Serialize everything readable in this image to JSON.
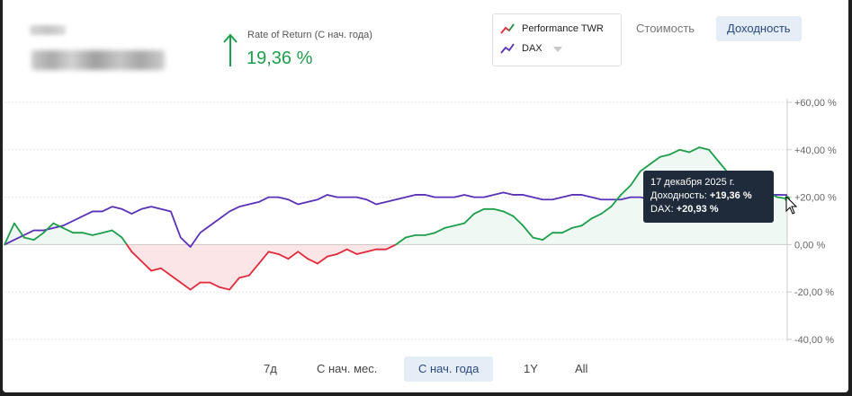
{
  "header": {
    "rate_of_return_label": "Rate of Return (С нач. года)",
    "rate_of_return_value": "19,36 %"
  },
  "legend": {
    "items": [
      {
        "label": "Performance TWR",
        "color": "#e02a3a"
      },
      {
        "label": "DAX",
        "color": "#5b2fb8"
      }
    ]
  },
  "view_toggle": {
    "value_label": "Стоимость",
    "return_label": "Доходность",
    "active": "return"
  },
  "range_buttons": {
    "items": [
      "7д",
      "С нач. мес.",
      "С нач. года",
      "1Y",
      "All"
    ],
    "active": "С нач. года"
  },
  "tooltip": {
    "date": "17 декабря 2025 г.",
    "return_label": "Доходность:",
    "return_value": "+19,36 %",
    "dax_label": "DAX:",
    "dax_value": "+20,93 %"
  },
  "colors": {
    "positive": "#1e9e4a",
    "negative": "#e02a3a",
    "benchmark": "#5b2fb8",
    "active_bg": "#e5edf7"
  },
  "chart_data": {
    "type": "line",
    "y_unit": "%",
    "ylim": [
      -40,
      60
    ],
    "yticks": [
      "+60,00 %",
      "+40,00 %",
      "+20,00 %",
      "0,00 %",
      "-20,00 %",
      "-40,00 %"
    ],
    "ytick_values": [
      60,
      40,
      20,
      0,
      -20,
      -40
    ],
    "grid": true,
    "series": [
      {
        "name": "Performance TWR",
        "values": [
          0,
          9,
          3,
          2,
          5,
          9,
          7,
          5,
          5,
          4,
          5,
          6,
          3,
          -3,
          -7,
          -11,
          -10,
          -13,
          -16,
          -19,
          -16,
          -16,
          -18,
          -19,
          -14,
          -13,
          -8,
          -3,
          -4,
          -6,
          -3,
          -6,
          -8,
          -5,
          -4,
          -2,
          -4,
          -3,
          -2,
          -2,
          0,
          3,
          4,
          4,
          5,
          7,
          8,
          9,
          13,
          15,
          15,
          14,
          12,
          8,
          3,
          2,
          5,
          5,
          7,
          8,
          11,
          13,
          16,
          21,
          25,
          31,
          34,
          37,
          38,
          40,
          39,
          41,
          40,
          35,
          30,
          28,
          26,
          24,
          22,
          20,
          19.36
        ]
      },
      {
        "name": "DAX",
        "values": [
          0,
          2,
          4,
          6,
          6,
          7,
          8,
          10,
          12,
          14,
          14,
          16,
          15,
          13,
          15,
          16,
          15,
          14,
          3,
          -1,
          5,
          8,
          11,
          14,
          16,
          17,
          18,
          20,
          20,
          19,
          17,
          18,
          19,
          21,
          20,
          20,
          20,
          19,
          17,
          18,
          19,
          20,
          21,
          21,
          20,
          20,
          20,
          21,
          20,
          20,
          21,
          22,
          21,
          21,
          20,
          19,
          19,
          20,
          21,
          21,
          20,
          19,
          19,
          19,
          20,
          20,
          19,
          19,
          18,
          19,
          20,
          21,
          20,
          20,
          21,
          21,
          22,
          21,
          21,
          21,
          20.93
        ]
      }
    ],
    "highlight_value": 19.36
  }
}
